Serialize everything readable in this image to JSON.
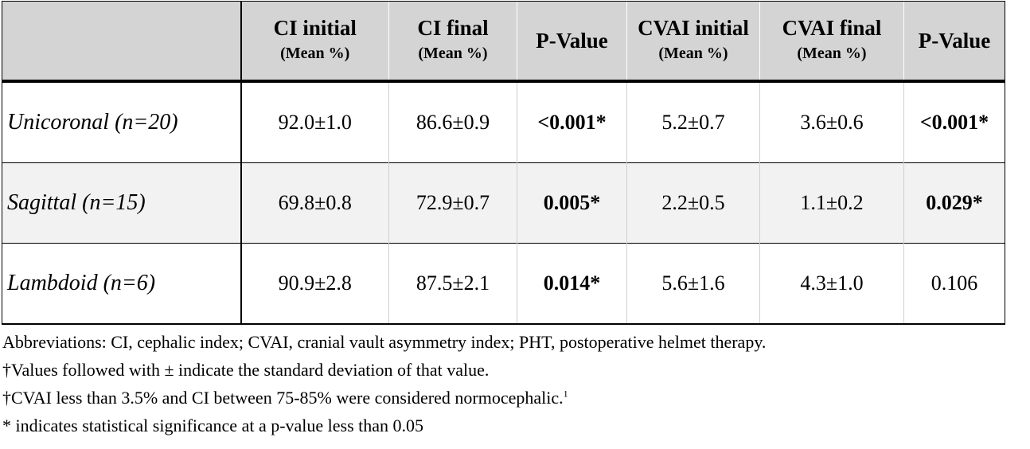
{
  "table": {
    "headers": [
      {
        "main": "",
        "sub": ""
      },
      {
        "main": "CI initial",
        "sub": "(Mean %)"
      },
      {
        "main": "CI final",
        "sub": "(Mean %)"
      },
      {
        "main": "P-Value",
        "sub": ""
      },
      {
        "main": "CVAI initial",
        "sub": "(Mean %)"
      },
      {
        "main": "CVAI final",
        "sub": "(Mean %)"
      },
      {
        "main": "P-Value",
        "sub": ""
      }
    ],
    "rows": [
      {
        "label": "Unicoronal (n=20)",
        "ci_initial": "92.0±1.0",
        "ci_final": "86.6±0.9",
        "ci_p": "<0.001*",
        "cvai_initial": "5.2±0.7",
        "cvai_final": "3.6±0.6",
        "cvai_p": "<0.001*"
      },
      {
        "label": "Sagittal (n=15)",
        "ci_initial": "69.8±0.8",
        "ci_final": "72.9±0.7",
        "ci_p": "0.005*",
        "cvai_initial": "2.2±0.5",
        "cvai_final": "1.1±0.2",
        "cvai_p": "0.029*"
      },
      {
        "label": "Lambdoid (n=6)",
        "ci_initial": "90.9±2.8",
        "ci_final": "87.5±2.1",
        "ci_p": "0.014*",
        "cvai_initial": "5.6±1.6",
        "cvai_final": "4.3±1.0",
        "cvai_p": "0.106"
      }
    ]
  },
  "notes": {
    "abbreviations": "Abbreviations: CI, cephalic index; CVAI, cranial vault asymmetry index; PHT, postoperative helmet therapy.",
    "sd_note": "†Values followed with ± indicate the standard deviation of that value.",
    "normo_note": "†CVAI less than 3.5% and CI between 75-85% were considered normocephalic.",
    "normo_ref": "1",
    "sig_note": "* indicates statistical significance at a p-value less than 0.05"
  }
}
